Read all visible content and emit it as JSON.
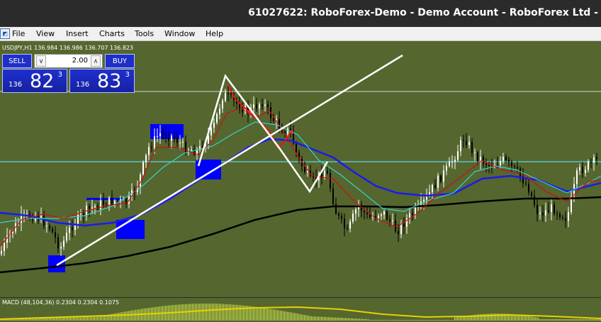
{
  "window": {
    "title": "61027622: RoboForex-Demo - Demo Account - RoboForex Ltd -"
  },
  "menu": {
    "items": [
      {
        "name": "menu-file",
        "label": "File"
      },
      {
        "name": "menu-view",
        "label": "View"
      },
      {
        "name": "menu-insert",
        "label": "Insert"
      },
      {
        "name": "menu-charts",
        "label": "Charts"
      },
      {
        "name": "menu-tools",
        "label": "Tools"
      },
      {
        "name": "menu-window",
        "label": "Window"
      },
      {
        "name": "menu-help",
        "label": "Help"
      }
    ]
  },
  "chart": {
    "symbol_info": "USDJPY,H1  136.984 136.986 136.707 136.823",
    "background_color": "#55662f",
    "bull_candle_color": "#ffffff",
    "bear_candle_color": "#000000",
    "ma_fast_color": "#cc1111",
    "ma_mid_color": "#33d6c8",
    "ma_slow_color": "#1a1aee",
    "ma_long_color": "#000000",
    "horizontal_line_color_1": "#d8d8d8",
    "horizontal_line_color_2": "#5fd6e8",
    "trendline_color": "#ffffff",
    "zone_color": "#0000ff"
  },
  "trade_panel": {
    "sell_label": "SELL",
    "buy_label": "BUY",
    "lot_value": "2.00",
    "sell_price_prefix": "136",
    "sell_price_big": "82",
    "sell_price_sup": "3",
    "buy_price_prefix": "136",
    "buy_price_big": "83",
    "buy_price_sup": "3"
  },
  "macd": {
    "label": "MACD (48,104,36) 0.2304 0.2304 0.1075",
    "histogram_color": "#c8e04a",
    "signal_color": "#e8d000"
  }
}
